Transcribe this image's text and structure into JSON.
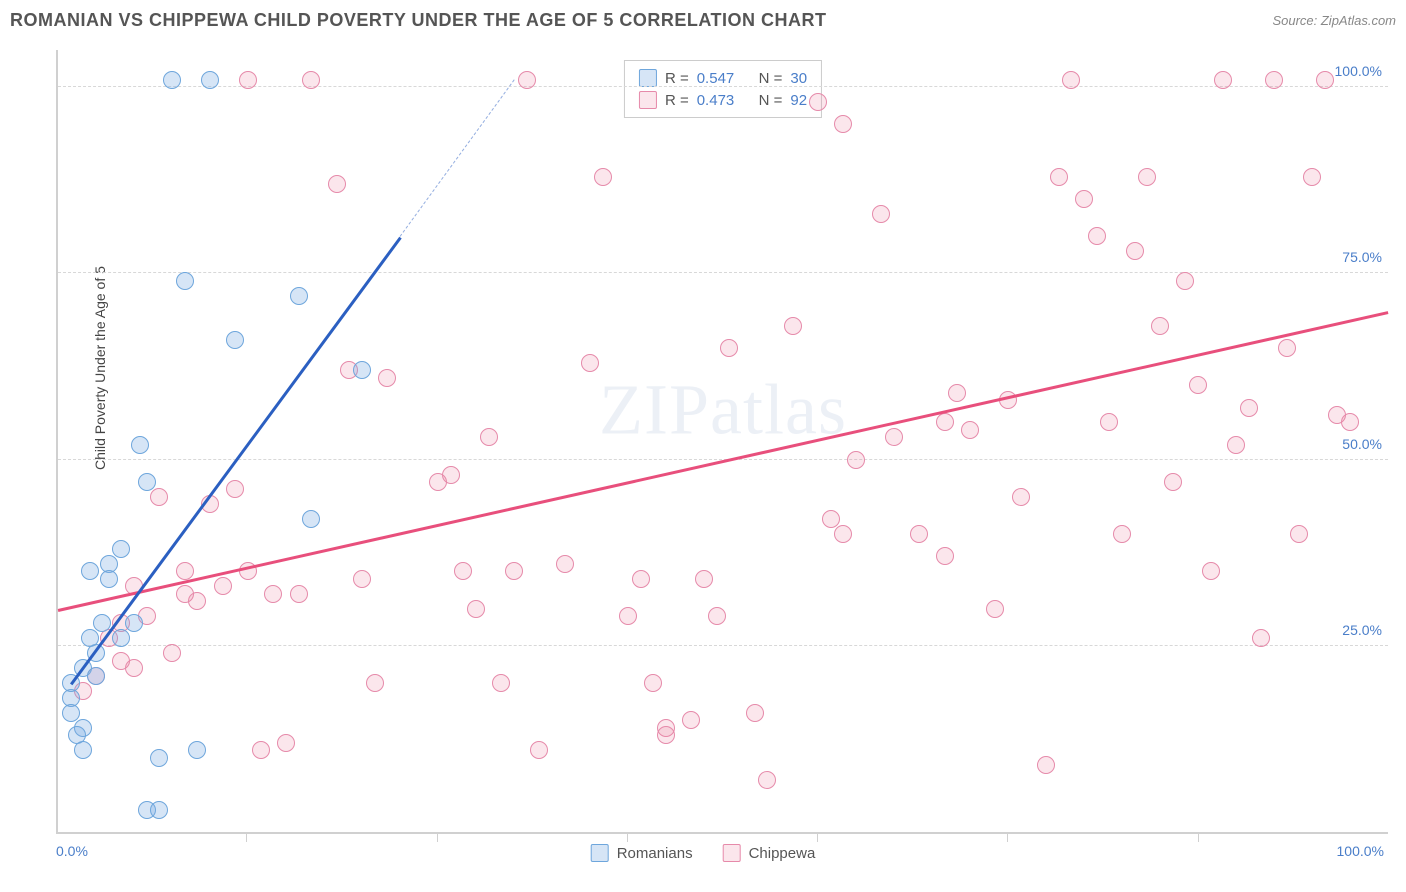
{
  "header": {
    "title": "ROMANIAN VS CHIPPEWA CHILD POVERTY UNDER THE AGE OF 5 CORRELATION CHART",
    "source": "Source: ZipAtlas.com"
  },
  "chart": {
    "type": "scatter",
    "ylabel": "Child Poverty Under the Age of 5",
    "xlim": [
      0,
      105
    ],
    "ylim": [
      0,
      105
    ],
    "background_color": "#ffffff",
    "grid_color": "#d8d8d8",
    "axis_color": "#d0d0d0",
    "tick_label_color": "#4a7ec9",
    "tick_fontsize": 14,
    "label_fontsize": 14,
    "y_ticks": [
      {
        "value": 25,
        "label": "25.0%"
      },
      {
        "value": 50,
        "label": "50.0%"
      },
      {
        "value": 75,
        "label": "75.0%"
      },
      {
        "value": 100,
        "label": "100.0%"
      }
    ],
    "x_tick_left": "0.0%",
    "x_tick_right": "100.0%",
    "x_minor_ticks": [
      15,
      30,
      45,
      60,
      75,
      90
    ],
    "marker_radius": 9,
    "marker_border_width": 1.5,
    "series": {
      "romanians": {
        "label": "Romanians",
        "fill_color": "rgba(120,170,225,0.30)",
        "border_color": "#6ea6dc",
        "trend_color": "#2b5fc1",
        "trend_dash_color": "#94aee0",
        "trend_width": 2.5,
        "R": "0.547",
        "N": "30",
        "trend": {
          "x1": 1,
          "y1": 20,
          "x2": 27,
          "y2": 80,
          "dash_x2": 36,
          "dash_y2": 101
        },
        "points": [
          [
            1,
            18
          ],
          [
            1,
            20
          ],
          [
            1,
            16
          ],
          [
            2,
            22
          ],
          [
            2,
            14
          ],
          [
            1.5,
            13
          ],
          [
            2.5,
            26
          ],
          [
            3,
            24
          ],
          [
            3,
            21
          ],
          [
            3.5,
            28
          ],
          [
            4,
            36
          ],
          [
            4,
            34
          ],
          [
            5,
            38
          ],
          [
            5,
            26
          ],
          [
            6,
            28
          ],
          [
            6.5,
            52
          ],
          [
            7,
            47
          ],
          [
            8,
            10
          ],
          [
            9,
            101
          ],
          [
            12,
            101
          ],
          [
            10,
            74
          ],
          [
            14,
            66
          ],
          [
            19,
            72
          ],
          [
            24,
            62
          ],
          [
            20,
            42
          ],
          [
            7,
            3
          ],
          [
            8,
            3
          ],
          [
            11,
            11
          ],
          [
            2,
            11
          ],
          [
            2.5,
            35
          ]
        ]
      },
      "chippewa": {
        "label": "Chippewa",
        "fill_color": "rgba(235,130,160,0.20)",
        "border_color": "#e68aaa",
        "trend_color": "#e84f7c",
        "trend_width": 2.5,
        "R": "0.473",
        "N": "92",
        "trend": {
          "x1": 0,
          "y1": 30,
          "x2": 105,
          "y2": 70
        },
        "points": [
          [
            2,
            19
          ],
          [
            3,
            21
          ],
          [
            4,
            26
          ],
          [
            5,
            23
          ],
          [
            5,
            28
          ],
          [
            6,
            22
          ],
          [
            6,
            33
          ],
          [
            7,
            29
          ],
          [
            8,
            45
          ],
          [
            9,
            24
          ],
          [
            10,
            32
          ],
          [
            10,
            35
          ],
          [
            11,
            31
          ],
          [
            12,
            44
          ],
          [
            13,
            33
          ],
          [
            14,
            46
          ],
          [
            15,
            35
          ],
          [
            16,
            11
          ],
          [
            17,
            32
          ],
          [
            18,
            12
          ],
          [
            19,
            32
          ],
          [
            20,
            101
          ],
          [
            22,
            87
          ],
          [
            23,
            62
          ],
          [
            24,
            34
          ],
          [
            25,
            20
          ],
          [
            26,
            61
          ],
          [
            30,
            47
          ],
          [
            31,
            48
          ],
          [
            32,
            35
          ],
          [
            33,
            30
          ],
          [
            34,
            53
          ],
          [
            35,
            20
          ],
          [
            36,
            35
          ],
          [
            37,
            101
          ],
          [
            38,
            11
          ],
          [
            40,
            36
          ],
          [
            42,
            63
          ],
          [
            43,
            88
          ],
          [
            45,
            29
          ],
          [
            47,
            20
          ],
          [
            48,
            14
          ],
          [
            50,
            15
          ],
          [
            51,
            34
          ],
          [
            52,
            29
          ],
          [
            53,
            65
          ],
          [
            55,
            16
          ],
          [
            56,
            7
          ],
          [
            58,
            68
          ],
          [
            60,
            98
          ],
          [
            61,
            42
          ],
          [
            62,
            95
          ],
          [
            63,
            50
          ],
          [
            65,
            83
          ],
          [
            66,
            53
          ],
          [
            68,
            40
          ],
          [
            70,
            37
          ],
          [
            71,
            59
          ],
          [
            72,
            54
          ],
          [
            74,
            30
          ],
          [
            75,
            58
          ],
          [
            76,
            45
          ],
          [
            78,
            9
          ],
          [
            79,
            88
          ],
          [
            80,
            101
          ],
          [
            81,
            85
          ],
          [
            82,
            80
          ],
          [
            83,
            55
          ],
          [
            84,
            40
          ],
          [
            85,
            78
          ],
          [
            86,
            88
          ],
          [
            87,
            68
          ],
          [
            88,
            47
          ],
          [
            89,
            74
          ],
          [
            90,
            60
          ],
          [
            91,
            35
          ],
          [
            92,
            101
          ],
          [
            93,
            52
          ],
          [
            94,
            57
          ],
          [
            95,
            26
          ],
          [
            96,
            101
          ],
          [
            97,
            65
          ],
          [
            98,
            40
          ],
          [
            99,
            88
          ],
          [
            100,
            101
          ],
          [
            101,
            56
          ],
          [
            102,
            55
          ],
          [
            15,
            101
          ],
          [
            48,
            13
          ],
          [
            62,
            40
          ],
          [
            70,
            55
          ],
          [
            46,
            34
          ]
        ]
      }
    },
    "legend_stats": {
      "R_label": "R =",
      "N_label": "N ="
    },
    "watermark": "ZIPatlas"
  }
}
